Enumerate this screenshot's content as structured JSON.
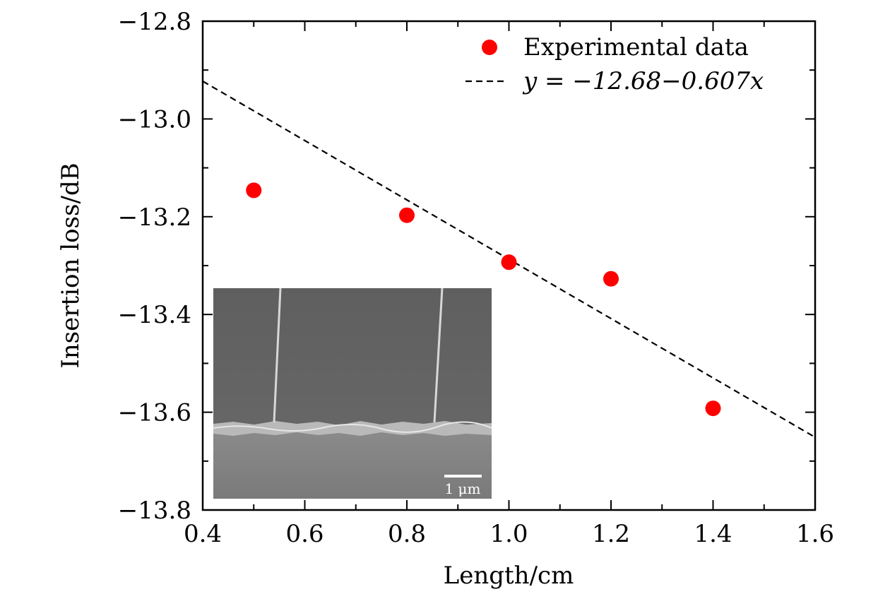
{
  "chart_data": {
    "type": "scatter",
    "xlabel": "Length/cm",
    "ylabel": "Insertion loss/dB",
    "xlim": [
      0.4,
      1.6
    ],
    "ylim": [
      -13.8,
      -12.8
    ],
    "x_ticks": [
      0.4,
      0.6,
      0.8,
      1.0,
      1.2,
      1.4,
      1.6
    ],
    "x_tick_labels": [
      "0.4",
      "0.6",
      "0.8",
      "1.0",
      "1.2",
      "1.4",
      "1.6"
    ],
    "y_ticks": [
      -12.8,
      -13.0,
      -13.2,
      -13.4,
      -13.6,
      -13.8
    ],
    "y_tick_labels": [
      "−12.8",
      "−13.0",
      "−13.2",
      "−13.4",
      "−13.6",
      "−13.8"
    ],
    "series": [
      {
        "name": "Experimental data",
        "kind": "scatter",
        "color": "#ff0000",
        "x": [
          0.5,
          0.8,
          1.0,
          1.2,
          1.4
        ],
        "y": [
          -13.146,
          -13.197,
          -13.293,
          -13.327,
          -13.592
        ]
      },
      {
        "name": "y = −12.68−0.607x",
        "kind": "line",
        "style": "dashed",
        "color": "#000000",
        "intercept": -12.68,
        "slope": -0.607,
        "x_range": [
          0.4,
          1.6
        ]
      }
    ],
    "legend": {
      "position": "top-right",
      "entries": [
        "Experimental data",
        "y = −12.68−0.607x"
      ]
    },
    "inset": {
      "description": "SEM image",
      "scale_bar_label": "1 μm"
    }
  }
}
